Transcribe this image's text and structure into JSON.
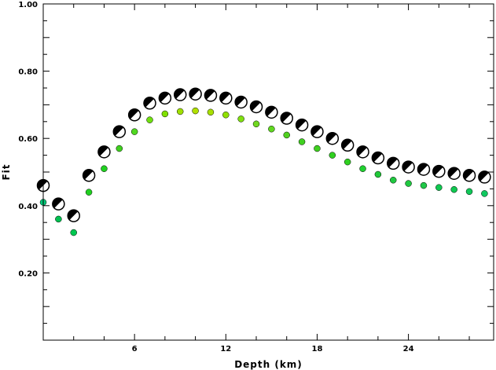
{
  "chart_data": {
    "type": "scatter",
    "xlabel": "Depth (km)",
    "ylabel": "Fit",
    "xlim": [
      0,
      29.6
    ],
    "ylim": [
      0,
      1.0
    ],
    "x_ticks": [
      6,
      12,
      18,
      24
    ],
    "x_tick_labels": [
      "6",
      "12",
      "18",
      "24"
    ],
    "y_ticks": [
      0.2,
      0.4,
      0.6,
      0.8,
      1.0
    ],
    "y_tick_labels": [
      "0.20",
      "0.40",
      "0.60",
      "0.80",
      "1.00"
    ],
    "grid": false,
    "series": [
      {
        "marker": "focal-mechanism",
        "x": [
          0,
          1,
          2,
          3,
          4,
          5,
          6,
          7,
          8,
          9,
          10,
          11,
          12,
          13,
          14,
          15,
          16,
          17,
          18,
          19,
          20,
          21,
          22,
          23,
          24,
          25,
          26,
          27,
          28,
          29
        ],
        "y": [
          0.46,
          0.405,
          0.37,
          0.49,
          0.56,
          0.62,
          0.67,
          0.705,
          0.72,
          0.73,
          0.732,
          0.728,
          0.72,
          0.708,
          0.694,
          0.678,
          0.66,
          0.64,
          0.62,
          0.6,
          0.58,
          0.56,
          0.542,
          0.526,
          0.515,
          0.508,
          0.502,
          0.496,
          0.49,
          0.485
        ],
        "color": "#000000"
      },
      {
        "marker": "circle",
        "x": [
          0,
          1,
          2,
          3,
          4,
          5,
          6,
          7,
          8,
          9,
          10,
          11,
          12,
          13,
          14,
          15,
          16,
          17,
          18,
          19,
          20,
          21,
          22,
          23,
          24,
          25,
          26,
          27,
          28,
          29
        ],
        "y": [
          0.41,
          0.36,
          0.32,
          0.44,
          0.51,
          0.57,
          0.62,
          0.655,
          0.673,
          0.68,
          0.682,
          0.678,
          0.67,
          0.658,
          0.643,
          0.628,
          0.61,
          0.59,
          0.57,
          0.55,
          0.53,
          0.51,
          0.493,
          0.476,
          0.466,
          0.46,
          0.454,
          0.448,
          0.442,
          0.436
        ],
        "colors": [
          "#00c878",
          "#00c050",
          "#00c850",
          "#20d020",
          "#20d020",
          "#40d020",
          "#50d820",
          "#70e010",
          "#80e000",
          "#a0e000",
          "#b0e000",
          "#a8e000",
          "#90e000",
          "#80e010",
          "#70d820",
          "#60d820",
          "#50d020",
          "#40d020",
          "#40d020",
          "#30d020",
          "#30d020",
          "#20d030",
          "#20c838",
          "#20c840",
          "#20c840",
          "#20c848",
          "#10c850",
          "#10c850",
          "#10c858",
          "#10c860"
        ]
      }
    ]
  }
}
